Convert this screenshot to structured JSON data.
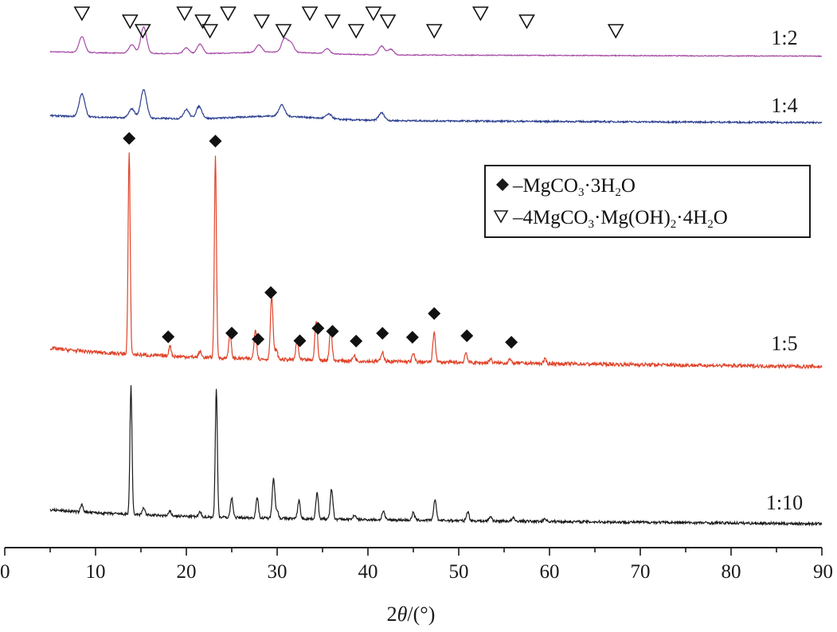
{
  "chart_data": {
    "type": "line",
    "title": "",
    "xlabel": "2θ/(°)",
    "ylabel": "",
    "xlim": [
      0,
      90
    ],
    "xticks": [
      0,
      10,
      20,
      30,
      40,
      50,
      60,
      70,
      80,
      90
    ],
    "y_axis_shown": false,
    "grid": false,
    "legend_position": "right-middle",
    "legend": [
      {
        "marker": "filled-diamond",
        "formula": [
          "–MgCO",
          "3",
          "·3H",
          "2",
          "O"
        ]
      },
      {
        "marker": "open-triangle-down",
        "formula": [
          "–4MgCO",
          "3",
          "·Mg(OH)",
          "2",
          "·4H",
          "2",
          "O"
        ]
      }
    ],
    "series": [
      {
        "name": "1:2",
        "color": "#a64ca6",
        "x_range": [
          5,
          90
        ],
        "peaks": [
          {
            "x": 8.5,
            "h": 0.33
          },
          {
            "x": 14.0,
            "h": 0.18
          },
          {
            "x": 15.3,
            "h": 0.55
          },
          {
            "x": 20.0,
            "h": 0.12
          },
          {
            "x": 21.5,
            "h": 0.2
          },
          {
            "x": 28.0,
            "h": 0.15
          },
          {
            "x": 30.8,
            "h": 0.28
          },
          {
            "x": 31.5,
            "h": 0.2
          },
          {
            "x": 35.5,
            "h": 0.1
          },
          {
            "x": 41.5,
            "h": 0.18
          },
          {
            "x": 42.5,
            "h": 0.12
          }
        ],
        "markers": {
          "symbol": "open-triangle-down",
          "x": [
            8.5,
            13.8,
            15.2,
            19.8,
            21.8,
            22.6,
            24.6,
            28.3,
            30.7,
            33.6,
            36.1,
            38.7,
            40.6,
            42.2,
            47.3,
            52.4,
            57.5,
            67.3
          ]
        }
      },
      {
        "name": "1:4",
        "color": "#2b3f8f",
        "x_range": [
          5,
          90
        ],
        "peaks": [
          {
            "x": 8.5,
            "h": 0.3
          },
          {
            "x": 14.0,
            "h": 0.12
          },
          {
            "x": 15.3,
            "h": 0.38
          },
          {
            "x": 20.0,
            "h": 0.12
          },
          {
            "x": 21.4,
            "h": 0.16
          },
          {
            "x": 30.5,
            "h": 0.15
          },
          {
            "x": 35.7,
            "h": 0.06
          },
          {
            "x": 41.5,
            "h": 0.1
          }
        ],
        "markers": {
          "symbol": "none",
          "x": []
        }
      },
      {
        "name": "1:5",
        "color": "#e0442a",
        "x_range": [
          5,
          90
        ],
        "peaks": [
          {
            "x": 13.7,
            "h": 1.0
          },
          {
            "x": 18.2,
            "h": 0.05
          },
          {
            "x": 21.5,
            "h": 0.03
          },
          {
            "x": 23.2,
            "h": 1.0
          },
          {
            "x": 24.8,
            "h": 0.12
          },
          {
            "x": 27.6,
            "h": 0.15
          },
          {
            "x": 29.4,
            "h": 0.32
          },
          {
            "x": 29.9,
            "h": 0.05
          },
          {
            "x": 32.2,
            "h": 0.1
          },
          {
            "x": 34.3,
            "h": 0.2
          },
          {
            "x": 35.9,
            "h": 0.16
          },
          {
            "x": 38.5,
            "h": 0.03
          },
          {
            "x": 41.6,
            "h": 0.05
          },
          {
            "x": 45.0,
            "h": 0.04
          },
          {
            "x": 47.3,
            "h": 0.15
          },
          {
            "x": 50.8,
            "h": 0.05
          },
          {
            "x": 53.5,
            "h": 0.02
          },
          {
            "x": 55.6,
            "h": 0.02
          },
          {
            "x": 59.5,
            "h": 0.02
          }
        ],
        "markers": {
          "symbol": "filled-diamond",
          "x": [
            13.7,
            18.0,
            23.2,
            25.0,
            27.9,
            29.3,
            32.5,
            34.5,
            36.1,
            38.7,
            41.6,
            44.9,
            47.3,
            50.9,
            55.8
          ]
        }
      },
      {
        "name": "1:10",
        "color": "#1a1a1a",
        "x_range": [
          5,
          90
        ],
        "peaks": [
          {
            "x": 8.5,
            "h": 0.05
          },
          {
            "x": 13.9,
            "h": 0.85
          },
          {
            "x": 15.3,
            "h": 0.05
          },
          {
            "x": 18.2,
            "h": 0.03
          },
          {
            "x": 21.5,
            "h": 0.03
          },
          {
            "x": 23.3,
            "h": 0.85
          },
          {
            "x": 25.0,
            "h": 0.13
          },
          {
            "x": 27.8,
            "h": 0.13
          },
          {
            "x": 29.6,
            "h": 0.27
          },
          {
            "x": 30.0,
            "h": 0.05
          },
          {
            "x": 32.4,
            "h": 0.12
          },
          {
            "x": 34.4,
            "h": 0.17
          },
          {
            "x": 36.0,
            "h": 0.2
          },
          {
            "x": 38.5,
            "h": 0.03
          },
          {
            "x": 41.7,
            "h": 0.06
          },
          {
            "x": 45.0,
            "h": 0.05
          },
          {
            "x": 47.4,
            "h": 0.14
          },
          {
            "x": 51.0,
            "h": 0.06
          },
          {
            "x": 53.5,
            "h": 0.03
          },
          {
            "x": 56.0,
            "h": 0.02
          },
          {
            "x": 59.5,
            "h": 0.02
          }
        ],
        "markers": {
          "symbol": "none",
          "x": []
        }
      }
    ]
  }
}
